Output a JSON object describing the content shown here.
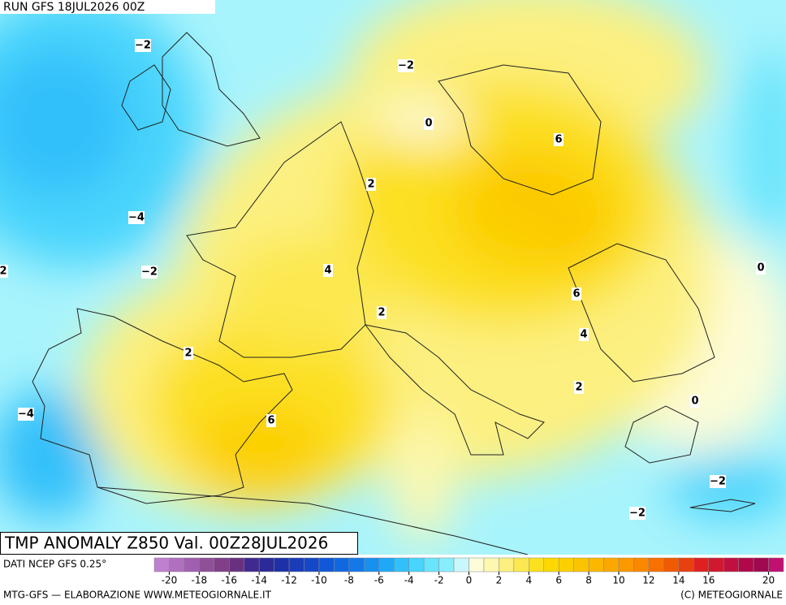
{
  "header": {
    "run_label": "RUN GFS 18JUL2026 00Z"
  },
  "title": "TMP ANOMALY Z850 Val. 00Z28JUL2026",
  "contour_labels": [
    "−2",
    "−2",
    "0",
    "6",
    "2",
    "−4",
    "−2",
    "2",
    "4",
    "0",
    "6",
    "2",
    "4",
    "2",
    "2",
    "0",
    "−4",
    "6",
    "−2",
    "−2"
  ],
  "colorbar": {
    "source": "DATI NCEP GFS 0.25°",
    "lim": [
      -21,
      21
    ],
    "ticks": [
      -20,
      -18,
      -16,
      -14,
      -12,
      -10,
      -8,
      -6,
      -4,
      -2,
      0,
      2,
      4,
      6,
      8,
      10,
      12,
      14,
      16,
      20
    ],
    "colors": [
      "#c080d0",
      "#b070c0",
      "#a060b0",
      "#905098",
      "#803f88",
      "#6a3080",
      "#402a90",
      "#2a2a98",
      "#1e30a8",
      "#1a3cb8",
      "#1448c8",
      "#1058d8",
      "#1068e0",
      "#1478e8",
      "#1890f0",
      "#20a8f8",
      "#30c0fa",
      "#48d4fc",
      "#68e4fc",
      "#88eefc",
      "#c8f8fc",
      "#fcfcd8",
      "#fcf8b0",
      "#fcf080",
      "#fce850",
      "#fce020",
      "#fcd800",
      "#fcd000",
      "#fcc400",
      "#fcb800",
      "#fca800",
      "#fc9800",
      "#fc8800",
      "#f87000",
      "#f05a00",
      "#e84010",
      "#e02020",
      "#d01830",
      "#c01040",
      "#b00848",
      "#a00850",
      "#c01070"
    ]
  },
  "footer": {
    "credit_left": "MTG-GFS — ELABORAZIONE WWW.METEOGIORNALE.IT",
    "credit_right": "(C) METEOGIORNALE"
  }
}
